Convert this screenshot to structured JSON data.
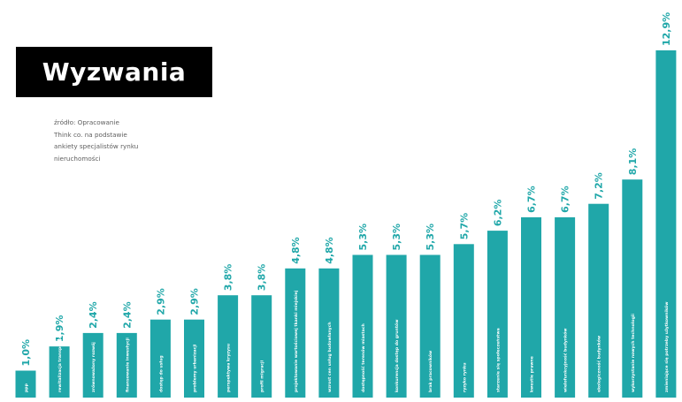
{
  "title": "Wyzwania",
  "source_lines": [
    "źródło: Opracowanie",
    "Think co. na podstawie",
    "ankiety specjalistów rynku",
    "nieruchomości"
  ],
  "colors": {
    "bar": "#20a7a9",
    "value_label": "#20a7a9",
    "bar_label": "#ffffff",
    "title_bg": "#000000",
    "title_text": "#ffffff"
  },
  "chart_data": {
    "type": "bar",
    "categories": [
      "ppp",
      "rewitalizacja transportowa",
      "zrównoważony rozwój",
      "finansowanie inwestycji",
      "dostęp do usług",
      "problemy urbanizacji",
      "perspektywa kryzysu",
      "profil migracji",
      "projektowanie wartościowej tkanki miejskiej",
      "wzrost cen usług budowlanych",
      "dostępność terenów miastach",
      "konkurencja dostęp do gruntów",
      "brak pracowników",
      "ryzyko rynku",
      "starzenie się społeczeństwa",
      "kwestie prawne",
      "wielofunkcyjność budynków",
      "ekologiczność budynków",
      "wykorzystanie nowych technologii",
      "zmieniające się potrzeby użytkowników"
    ],
    "values": [
      1.0,
      1.9,
      2.4,
      2.4,
      2.9,
      2.9,
      3.8,
      3.8,
      4.8,
      4.8,
      5.3,
      5.3,
      5.3,
      5.7,
      6.2,
      6.7,
      6.7,
      7.2,
      8.1,
      12.9
    ],
    "value_labels": [
      "1,0%",
      "1,9%",
      "2,4%",
      "2,4%",
      "2,9%",
      "2,9%",
      "3,8%",
      "3,8%",
      "4,8%",
      "4,8%",
      "5,3%",
      "5,3%",
      "5,3%",
      "5,7%",
      "6,2%",
      "6,7%",
      "6,7%",
      "7,2%",
      "8,1%",
      "12,9%"
    ],
    "ylim": [
      0,
      12.9
    ],
    "grid": false,
    "legend": "none"
  }
}
